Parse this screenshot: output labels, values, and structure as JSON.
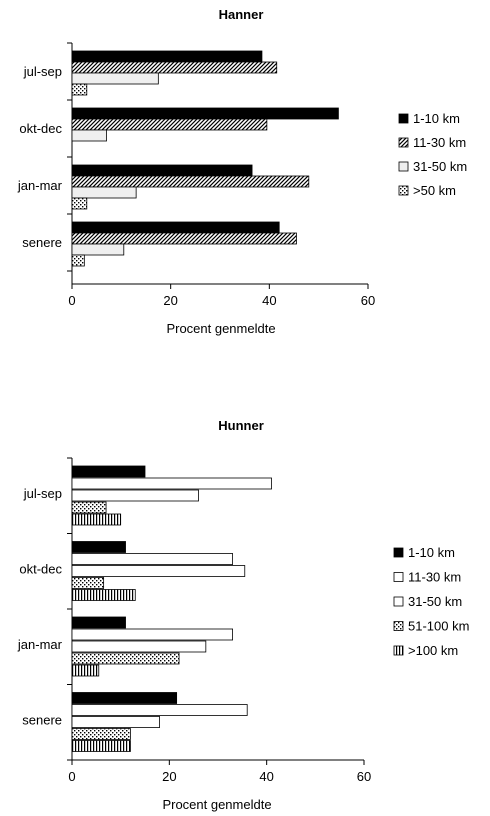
{
  "chart_data": [
    {
      "type": "bar",
      "orientation": "horizontal",
      "title": "Hanner",
      "xlabel": "Procent genmeldte",
      "ylabel": "",
      "xlim": [
        0,
        60
      ],
      "xticks": [
        "0",
        "20",
        "40",
        "60"
      ],
      "categories": [
        "jul-sep",
        "okt-dec",
        "jan-mar",
        "senere"
      ],
      "series": [
        {
          "name": "1-10 km",
          "pattern": "solid",
          "values": [
            38.5,
            54,
            36.5,
            42
          ]
        },
        {
          "name": "11-30 km",
          "pattern": "diagonal",
          "values": [
            41.5,
            39.5,
            48,
            45.5
          ]
        },
        {
          "name": "31-50 km",
          "pattern": "light",
          "values": [
            17.5,
            7,
            13,
            10.5
          ]
        },
        {
          "name": ">50 km",
          "pattern": "dots",
          "values": [
            3,
            0,
            3,
            2.5
          ]
        }
      ],
      "legend_position": "right",
      "grid": false
    },
    {
      "type": "bar",
      "orientation": "horizontal",
      "title": "Hunner",
      "xlabel": "Procent genmeldte",
      "ylabel": "",
      "xlim": [
        0,
        60
      ],
      "xticks": [
        "0",
        "20",
        "40",
        "60"
      ],
      "categories": [
        "jul-sep",
        "okt-dec",
        "jan-mar",
        "senere"
      ],
      "series": [
        {
          "name": "1-10 km",
          "pattern": "solid",
          "values": [
            15,
            11,
            11,
            21.5
          ]
        },
        {
          "name": "11-30 km",
          "pattern": "white",
          "values": [
            41,
            33,
            33,
            36
          ]
        },
        {
          "name": "31-50 km",
          "pattern": "white",
          "values": [
            26,
            35.5,
            27.5,
            18
          ]
        },
        {
          "name": "51-100 km",
          "pattern": "dots",
          "values": [
            7,
            6.5,
            22,
            12
          ]
        },
        {
          "name": ">100 km",
          "pattern": "vertical",
          "values": [
            10,
            13,
            5.5,
            12
          ]
        }
      ],
      "legend_position": "right",
      "grid": false
    }
  ]
}
